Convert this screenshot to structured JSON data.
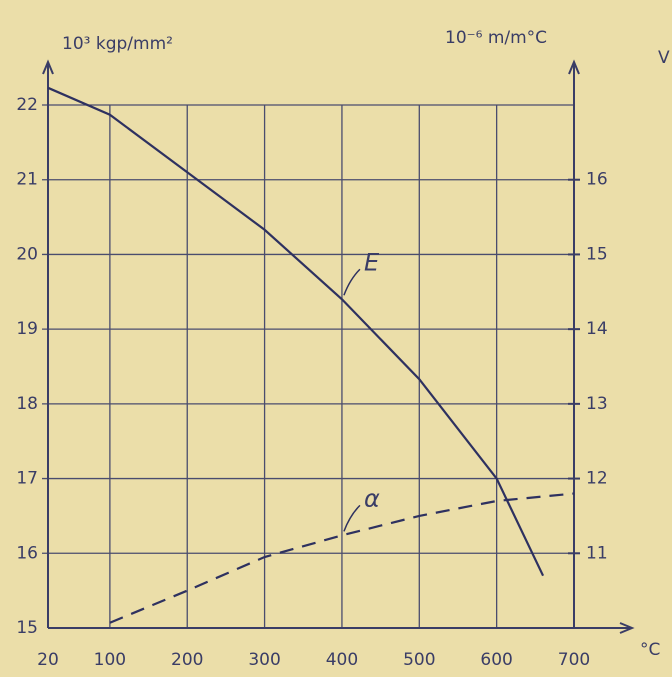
{
  "chart_data": {
    "type": "line",
    "y_label": "10³ kgp/mm²",
    "y2_label": "10⁻⁶ m/m°C",
    "x_label": "°C",
    "xlim": [
      20,
      700
    ],
    "xticks": [
      20,
      100,
      200,
      300,
      400,
      500,
      600,
      700
    ],
    "ylim": [
      15,
      22
    ],
    "yticks": [
      15,
      16,
      17,
      18,
      19,
      20,
      21,
      22
    ],
    "y2lim": [
      10,
      17
    ],
    "y2ticks": [
      11,
      12,
      13,
      14,
      15,
      16
    ],
    "grid": true,
    "series": [
      {
        "name": "E",
        "color": "#2e3160",
        "linestyle": "solid",
        "x": [
          20,
          100,
          200,
          300,
          400,
          500,
          600,
          660
        ],
        "values": [
          22.23,
          21.87,
          21.1,
          20.33,
          19.4,
          18.33,
          17.0,
          15.7
        ]
      },
      {
        "name": "α",
        "color": "#2e3160",
        "linestyle": "dashed",
        "axis": "y2",
        "x": [
          100,
          200,
          300,
          400,
          500,
          600,
          700
        ],
        "values": [
          10.07,
          10.5,
          10.95,
          11.24,
          11.5,
          11.7,
          11.8
        ]
      }
    ],
    "annotations": [
      {
        "text": "V"
      }
    ]
  }
}
